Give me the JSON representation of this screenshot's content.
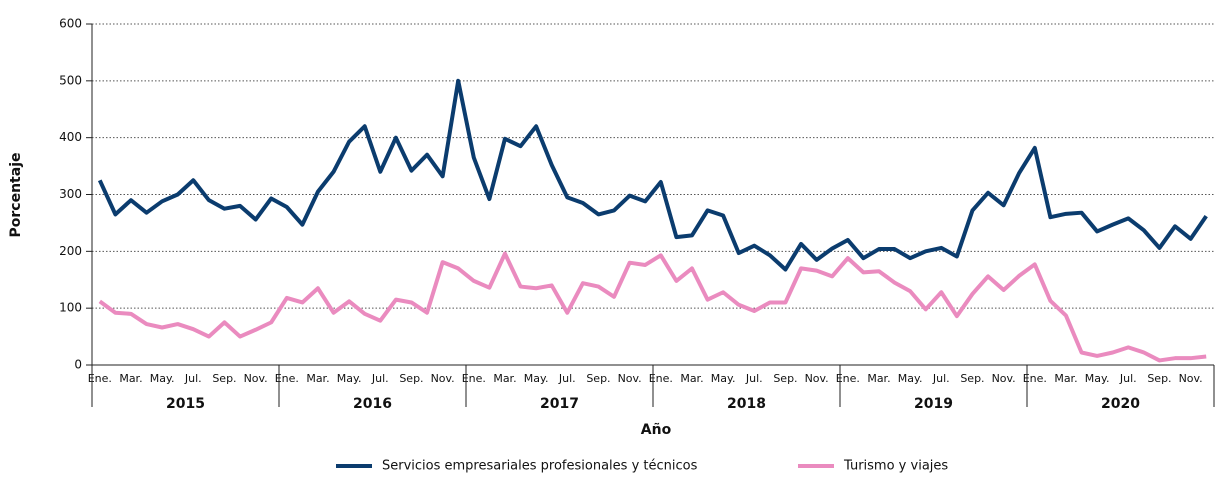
{
  "chart_data": {
    "type": "line",
    "y_label": "Porcentaje",
    "x_label": "Año",
    "categories": [
      "Ene.",
      null,
      "Mar.",
      null,
      "May.",
      null,
      "Jul.",
      null,
      "Sep.",
      null,
      "Nov.",
      null,
      "Ene.",
      null,
      "Mar.",
      null,
      "May.",
      null,
      "Jul.",
      null,
      "Sep.",
      null,
      "Nov.",
      null,
      "Ene.",
      null,
      "Mar.",
      null,
      "May.",
      null,
      "Jul.",
      null,
      "Sep.",
      null,
      "Nov.",
      null,
      "Ene.",
      null,
      "Mar.",
      null,
      "May.",
      null,
      "Jul.",
      null,
      "Sep.",
      null,
      "Nov.",
      null,
      "Ene.",
      null,
      "Mar.",
      null,
      "May.",
      null,
      "Jul.",
      null,
      "Sep.",
      null,
      "Nov.",
      null,
      "Ene.",
      null,
      "Mar.",
      null,
      "May.",
      null,
      "Jul.",
      null,
      "Sep.",
      null,
      "Nov.",
      null
    ],
    "years": [
      "2015",
      "2016",
      "2017",
      "2018",
      "2019",
      "2020"
    ],
    "ylim": [
      0,
      600
    ],
    "yticks": [
      0,
      100,
      200,
      300,
      400,
      500,
      600
    ],
    "grid": true,
    "legend": "bottom",
    "series": [
      {
        "name": "Servicios empresariales profesionales y técnicos",
        "color": "#0b3c6e",
        "values": [
          325,
          265,
          290,
          268,
          288,
          300,
          325,
          290,
          275,
          280,
          256,
          293,
          278,
          247,
          305,
          340,
          393,
          420,
          340,
          400,
          342,
          370,
          332,
          500,
          365,
          292,
          398,
          385,
          420,
          352,
          295,
          285,
          265,
          272,
          298,
          288,
          322,
          225,
          228,
          272,
          263,
          197,
          210,
          193,
          168,
          213,
          185,
          205,
          220,
          188,
          204,
          204,
          188,
          200,
          206,
          191,
          272,
          303,
          281,
          338,
          382,
          260,
          266,
          268,
          235,
          247,
          258,
          237,
          206,
          244,
          222,
          262
        ]
      },
      {
        "name": "Turismo y viajes",
        "color": "#ea8bbf",
        "values": [
          112,
          92,
          90,
          72,
          66,
          72,
          63,
          50,
          75,
          50,
          62,
          75,
          118,
          110,
          135,
          92,
          112,
          90,
          78,
          115,
          110,
          92,
          181,
          170,
          148,
          136,
          196,
          138,
          135,
          140,
          92,
          144,
          138,
          120,
          180,
          176,
          193,
          148,
          170,
          115,
          128,
          106,
          95,
          110,
          110,
          170,
          166,
          156,
          188,
          163,
          165,
          145,
          130,
          98,
          128,
          86,
          125,
          156,
          132,
          157,
          177,
          113,
          87,
          22,
          16,
          22,
          31,
          22,
          8,
          12,
          12,
          15
        ]
      }
    ]
  }
}
